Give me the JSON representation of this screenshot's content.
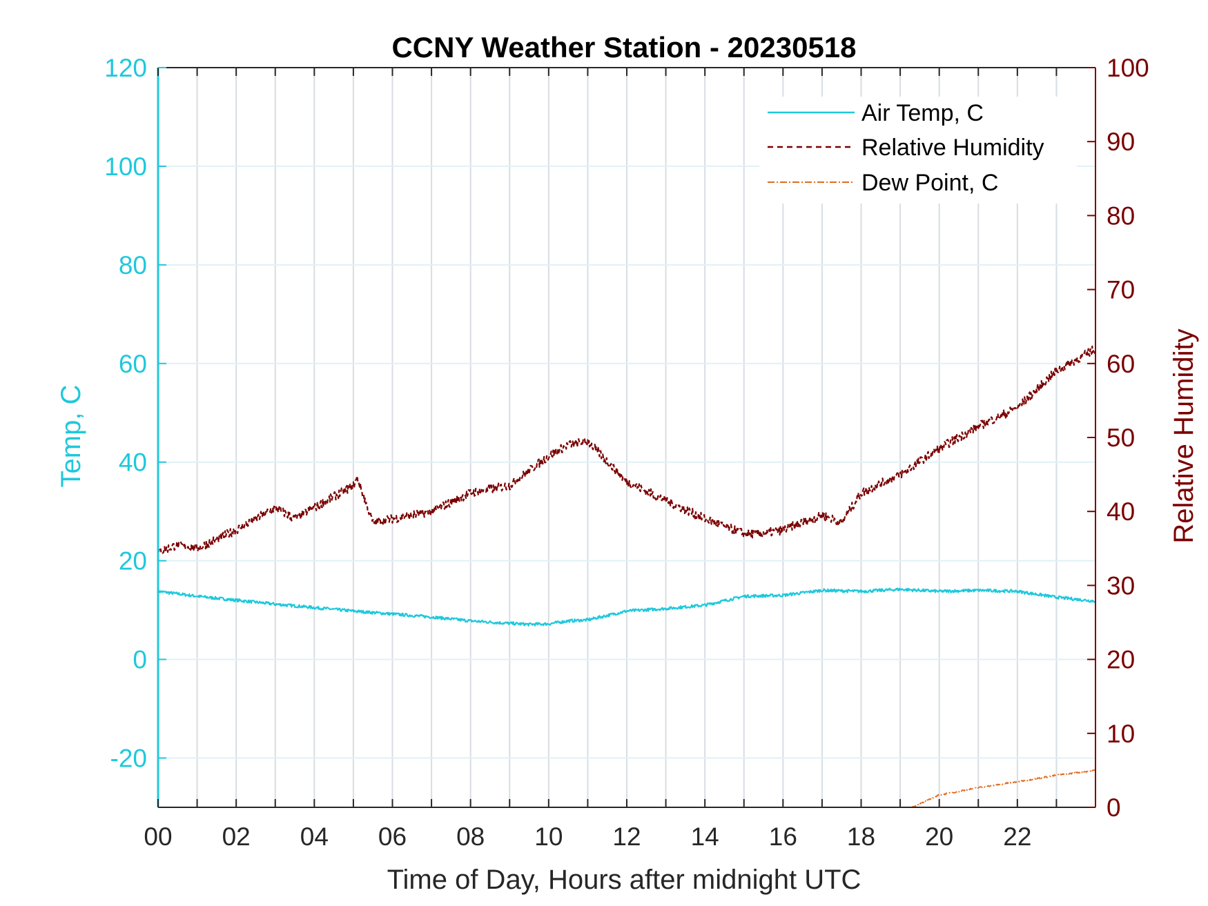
{
  "chart_data": {
    "type": "line",
    "title": "CCNY Weather Station - 20230518",
    "xlabel": "Time of Day, Hours after midnight UTC",
    "ylabel_left": "Temp, C",
    "ylabel_right": "Relative Humidity",
    "xlim": [
      0,
      24
    ],
    "ylim_left": [
      -30,
      120
    ],
    "ylim_right": [
      0,
      100
    ],
    "x_ticks": [
      0,
      2,
      4,
      6,
      8,
      10,
      12,
      14,
      16,
      18,
      20,
      22
    ],
    "x_tick_labels": [
      "00",
      "02",
      "04",
      "06",
      "08",
      "10",
      "12",
      "14",
      "16",
      "18",
      "20",
      "22"
    ],
    "y_left_ticks": [
      -20,
      0,
      20,
      40,
      60,
      80,
      100,
      120
    ],
    "y_left_tick_labels": [
      "-20",
      "0",
      "20",
      "40",
      "60",
      "80",
      "100",
      "120"
    ],
    "y_right_ticks": [
      0,
      10,
      20,
      30,
      40,
      50,
      60,
      70,
      80,
      90,
      100
    ],
    "y_right_tick_labels": [
      "0",
      "10",
      "20",
      "30",
      "40",
      "50",
      "60",
      "70",
      "80",
      "90",
      "100"
    ],
    "grid": true,
    "legend_position": "top-right",
    "colors": {
      "temp": "#1ec8dc",
      "humidity": "#7a0000",
      "dewpoint": "#e06a1c",
      "grid": "#d8dde3",
      "axis": "#262626"
    },
    "series": [
      {
        "name": "Air Temp, C",
        "axis": "left",
        "style": "solid",
        "x": [
          0,
          1,
          2,
          3,
          4,
          5,
          6,
          7,
          8,
          9,
          9.5,
          10,
          10.5,
          11,
          12,
          13,
          14,
          15,
          16,
          17,
          18,
          19,
          20,
          21,
          22,
          23,
          24
        ],
        "y": [
          13.8,
          12.8,
          12.0,
          11.2,
          10.5,
          9.8,
          9.2,
          8.6,
          7.8,
          7.3,
          7.1,
          7.2,
          7.8,
          8.0,
          9.8,
          10.3,
          11.0,
          12.8,
          13.0,
          14.0,
          13.8,
          14.2,
          13.8,
          14.0,
          13.8,
          12.6,
          11.8
        ]
      },
      {
        "name": "Relative Humidity",
        "axis": "right",
        "style": "dashed",
        "x": [
          0,
          0.5,
          1,
          2,
          3,
          3.5,
          4,
          5,
          5.1,
          5.5,
          6,
          7,
          8,
          9,
          10,
          10.5,
          11,
          12,
          13,
          14,
          15,
          15.5,
          16,
          17,
          17.5,
          18,
          19,
          20,
          21,
          22,
          23,
          24
        ],
        "y": [
          34.5,
          35.5,
          35.0,
          37.5,
          40.5,
          39.0,
          40.5,
          43.5,
          44.5,
          38.5,
          39.0,
          40.0,
          42.5,
          43.5,
          47.5,
          49.0,
          49.5,
          44.0,
          41.5,
          39.0,
          37.0,
          37.0,
          37.5,
          39.5,
          38.5,
          42.5,
          45.0,
          48.5,
          51.5,
          54.0,
          59.0,
          62.0
        ]
      },
      {
        "name": "Dew Point, C",
        "axis": "left",
        "style": "dashdot",
        "x": [
          19.3,
          19.6,
          20,
          21,
          22,
          23,
          24
        ],
        "y": [
          -30,
          -29,
          -27.5,
          -26,
          -24.8,
          -23.5,
          -22.5
        ]
      }
    ]
  }
}
